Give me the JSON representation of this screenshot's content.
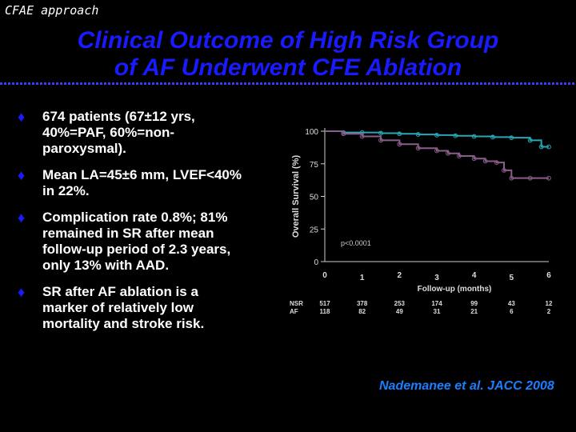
{
  "header": {
    "corner_label": "CFAE approach"
  },
  "title": {
    "line1": "Clinical Outcome of High Risk Group",
    "line2": "of AF Underwent CFE Ablation"
  },
  "bullets": [
    {
      "lines": [
        "674 patients (67±12 yrs,",
        "40%=PAF, 60%=non-",
        "paroxysmal)."
      ]
    },
    {
      "lines": [
        "Mean LA=45±6 mm, LVEF<40%",
        "in 22%."
      ]
    },
    {
      "lines": [
        "Complication rate 0.8%; 81%",
        "remained in SR after mean",
        "follow-up period of 2.3 years,",
        "only 13% with AAD."
      ]
    },
    {
      "lines": [
        "SR after AF ablation is a",
        "marker of relatively low",
        "mortality and stroke risk."
      ]
    }
  ],
  "citation": "Nademanee et al. JACC 2008",
  "colors": {
    "title": "#1a1aff",
    "bullet_marker": "#1a1aff",
    "citation": "#1a7fff",
    "nsr_curve": "#2aa7b5",
    "af_curve": "#8a5d8a"
  },
  "chart_data": {
    "type": "line",
    "ylabel": "Overall Survival (%)",
    "xlabel": "Follow-up (months)",
    "yticks": [
      0,
      25,
      50,
      75,
      100
    ],
    "xticks": [
      0,
      1,
      2,
      3,
      4,
      5,
      6
    ],
    "ylim": [
      0,
      100
    ],
    "xlim": [
      0,
      6
    ],
    "annotation": "p<0.0001",
    "series": [
      {
        "name": "NSR",
        "x": [
          0,
          0.5,
          1,
          1.5,
          2,
          2.5,
          3,
          3.5,
          4,
          4.5,
          5,
          5.5,
          5.8,
          6.0
        ],
        "y": [
          100,
          99,
          99,
          98.5,
          98,
          97.5,
          97,
          96.5,
          96,
          95.5,
          95,
          93,
          88,
          88
        ],
        "at_risk": [
          "517",
          "378",
          "253",
          "174",
          "99",
          "43",
          "12"
        ]
      },
      {
        "name": "AF",
        "x": [
          0,
          0.5,
          1,
          1.5,
          2,
          2.5,
          3,
          3.3,
          3.6,
          4.0,
          4.3,
          4.6,
          4.8,
          5.0,
          5.5,
          6.0
        ],
        "y": [
          100,
          98,
          96,
          93,
          90,
          87,
          85,
          83,
          81,
          79,
          77,
          76,
          70,
          64,
          64,
          64
        ],
        "at_risk": [
          "118",
          "82",
          "49",
          "31",
          "21",
          "6",
          "2"
        ]
      }
    ]
  }
}
